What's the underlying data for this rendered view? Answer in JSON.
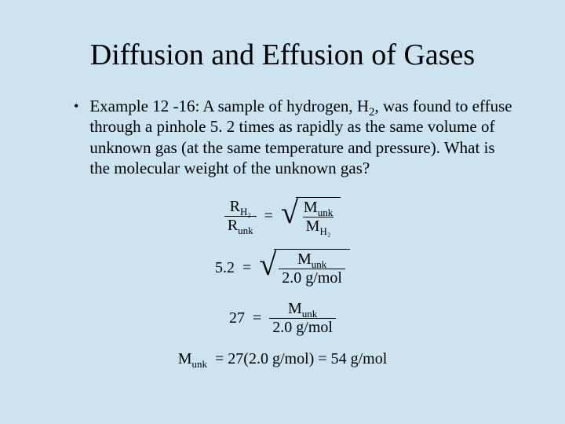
{
  "background_color": "#cce4f0",
  "text_color": "#000000",
  "title": "Diffusion and Effusion of Gases",
  "bullet_text_before_sub": "Example 12 -16: A sample of hydrogen, H",
  "bullet_sub": "2",
  "bullet_text_after_sub": ", was found to effuse through a pinhole 5. 2 times as rapidly as the same volume of unknown gas (at the same temperature and pressure). What is the molecular weight of the unknown gas?",
  "eq1": {
    "lhs_num_sym": "R",
    "lhs_num_sub": "H₂",
    "lhs_den_sym": "R",
    "lhs_den_sub": "unk",
    "rhs_num_sym": "M",
    "rhs_num_sub": "unk",
    "rhs_den_sym": "M",
    "rhs_den_sub": "H₂"
  },
  "eq2": {
    "lhs": "5.2",
    "rhs_num_sym": "M",
    "rhs_num_sub": "unk",
    "rhs_den": "2.0 g/mol"
  },
  "eq3": {
    "lhs": "27",
    "rhs_num_sym": "M",
    "rhs_num_sub": "unk",
    "rhs_den": "2.0 g/mol"
  },
  "eq4": {
    "lhs_sym": "M",
    "lhs_sub": "unk",
    "rhs": "= 27(2.0 g/mol) = 54 g/mol"
  },
  "eq_sign": "="
}
